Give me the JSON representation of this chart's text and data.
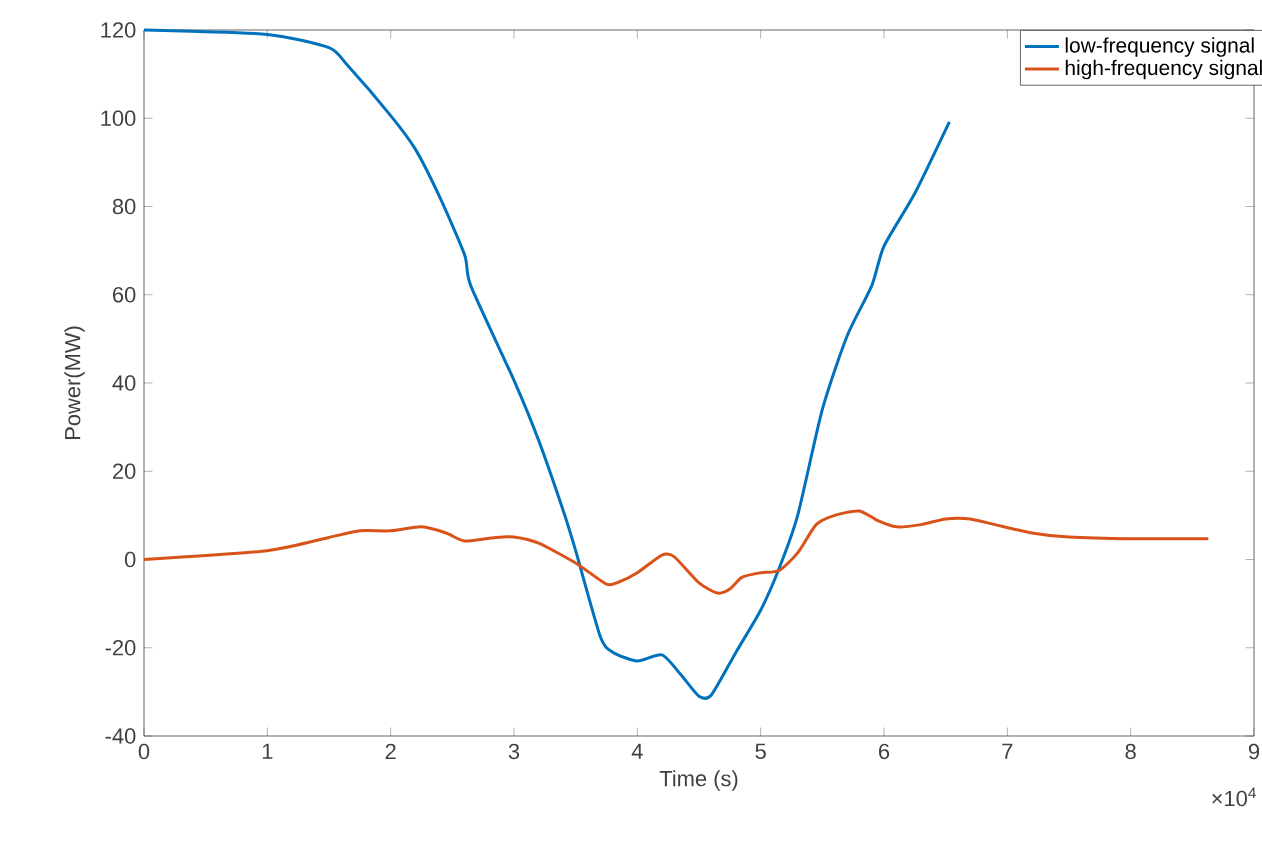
{
  "chart_data": {
    "type": "line",
    "xlabel": "Time (s)",
    "ylabel": "Power(MW)",
    "xlim": [
      0,
      9
    ],
    "ylim": [
      -40,
      120
    ],
    "xticks": [
      0,
      1,
      2,
      3,
      4,
      5,
      6,
      7,
      8,
      9
    ],
    "yticks": [
      -40,
      -20,
      0,
      20,
      40,
      60,
      80,
      100,
      120
    ],
    "legend": "top right",
    "annotations": [
      "×10$^{4}$"
    ],
    "series": [
      {
        "name": "low-frequency signal",
        "color": "#0072bd",
        "x": [
          0,
          1,
          1.5,
          1.65,
          2,
          2.2,
          2.4,
          2.6,
          2.65,
          3,
          3.2,
          3.4,
          3.5,
          3.7,
          3.8,
          4,
          4.2,
          4.35,
          4.5,
          4.6,
          4.8,
          5,
          5.15,
          5.3,
          5.5,
          5.7,
          5.9,
          6,
          6.25,
          6.53
        ],
        "values": [
          120,
          119,
          116,
          112,
          100.6,
          93,
          82,
          69,
          62,
          40.6,
          27,
          11,
          2,
          -17.5,
          -21,
          -23,
          -21.6,
          -26,
          -31,
          -30.7,
          -21,
          -11.5,
          -2,
          10,
          34,
          50.6,
          62,
          71,
          83,
          99.2
        ]
      },
      {
        "name": "high-frequency signal",
        "color": "#d95319",
        "x": [
          0,
          1,
          1.5,
          1.75,
          2,
          2.25,
          2.45,
          2.6,
          2.85,
          3,
          3.2,
          3.5,
          3.75,
          3.85,
          4,
          4.2,
          4.3,
          4.5,
          4.65,
          4.75,
          4.85,
          5,
          5.15,
          5.3,
          5.45,
          5.6,
          5.8,
          5.95,
          6.1,
          6.3,
          6.5,
          6.7,
          6.9,
          7.2,
          7.5,
          8,
          8.63
        ],
        "values": [
          0,
          2,
          5,
          6.5,
          6.5,
          7.4,
          6,
          4.2,
          5,
          5.1,
          3.7,
          -0.8,
          -5.6,
          -5.1,
          -3,
          1,
          0.6,
          -5.3,
          -7.6,
          -6.7,
          -4,
          -3,
          -2.5,
          1.5,
          7.9,
          10,
          11,
          8.8,
          7.4,
          7.9,
          9.2,
          9.2,
          7.9,
          6,
          5.1,
          4.7,
          4.7
        ]
      }
    ]
  }
}
